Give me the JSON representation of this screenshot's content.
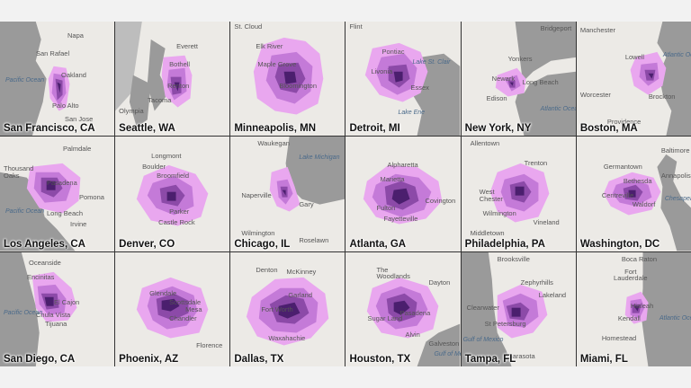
{
  "colors": {
    "outer": "#e9a7ef",
    "middle": "#c47ad8",
    "inner": "#8c4aa8",
    "core": "#4b1f6e",
    "water": "#9a9a9a",
    "land": "#eceae6"
  },
  "tiles": [
    {
      "title": "San Francisco, CA",
      "labels": [
        "Napa",
        "San Rafael",
        "Oakland",
        "Pacific Ocean",
        "Palo Alto",
        "San Jose"
      ]
    },
    {
      "title": "Seattle, WA",
      "labels": [
        "Everett",
        "Bothell",
        "Renton",
        "Tacoma",
        "Olympia"
      ]
    },
    {
      "title": "Minneapolis, MN",
      "labels": [
        "St. Cloud",
        "Elk River",
        "Maple Grove",
        "Bloomington"
      ]
    },
    {
      "title": "Detroit, MI",
      "labels": [
        "Flint",
        "Pontiac",
        "Lake St. Clair",
        "Livonia",
        "Essex",
        "Lake Erie"
      ]
    },
    {
      "title": "New York, NY",
      "labels": [
        "Bridgeport",
        "Yonkers",
        "Newark",
        "Long Beach",
        "Edison",
        "Atlantic Ocean"
      ]
    },
    {
      "title": "Boston, MA",
      "labels": [
        "Manchester",
        "Lowell",
        "Atlantic Ocean",
        "Worcester",
        "Brockton",
        "Providence"
      ]
    },
    {
      "title": "Los Angeles, CA",
      "labels": [
        "Palmdale",
        "Thousand Oaks",
        "Pasadena",
        "Pomona",
        "Pacific Ocean",
        "Long Beach",
        "Irvine"
      ]
    },
    {
      "title": "Denver, CO",
      "labels": [
        "Longmont",
        "Boulder",
        "Broomfield",
        "Parker",
        "Castle Rock"
      ]
    },
    {
      "title": "Chicago, IL",
      "labels": [
        "Waukegan",
        "Lake Michigan",
        "Naperville",
        "Gary",
        "Wilmington",
        "Roselawn"
      ]
    },
    {
      "title": "Atlanta, GA",
      "labels": [
        "Alpharetta",
        "Marietta",
        "Fulton",
        "Covington",
        "Fayetteville"
      ]
    },
    {
      "title": "Philadelphia, PA",
      "labels": [
        "Allentown",
        "Trenton",
        "West Chester",
        "Wilmington",
        "Vineland",
        "Middletown"
      ]
    },
    {
      "title": "Washington, DC",
      "labels": [
        "Baltimore",
        "Germantown",
        "Annapolis",
        "Bethesda",
        "Centreville",
        "Waldorf",
        "Chesapeake Bay"
      ]
    },
    {
      "title": "San Diego, CA",
      "labels": [
        "Oceanside",
        "Encinitas",
        "El Cajon",
        "Chula Vista",
        "Tijuana",
        "Pacific Ocean"
      ]
    },
    {
      "title": "Phoenix, AZ",
      "labels": [
        "Glendale",
        "Scottsdale",
        "Mesa",
        "Chandler",
        "Florence"
      ]
    },
    {
      "title": "Dallas, TX",
      "labels": [
        "Denton",
        "McKinney",
        "Garland",
        "Fort Worth",
        "Waxahachie"
      ]
    },
    {
      "title": "Houston, TX",
      "labels": [
        "The Woodlands",
        "Dayton",
        "Pasadena",
        "Sugar Land",
        "Alvin",
        "Galveston",
        "Gulf of Mexico"
      ]
    },
    {
      "title": "Tampa, FL",
      "labels": [
        "Brooksville",
        "Zephyrhills",
        "Lakeland",
        "Clearwater",
        "St Petersburg",
        "Gulf of Mexico",
        "Sarasota"
      ]
    },
    {
      "title": "Miami, FL",
      "labels": [
        "Boca Raton",
        "Fort Lauderdale",
        "Hialeah",
        "Kendall",
        "Atlantic Ocean",
        "Homestead"
      ]
    }
  ]
}
